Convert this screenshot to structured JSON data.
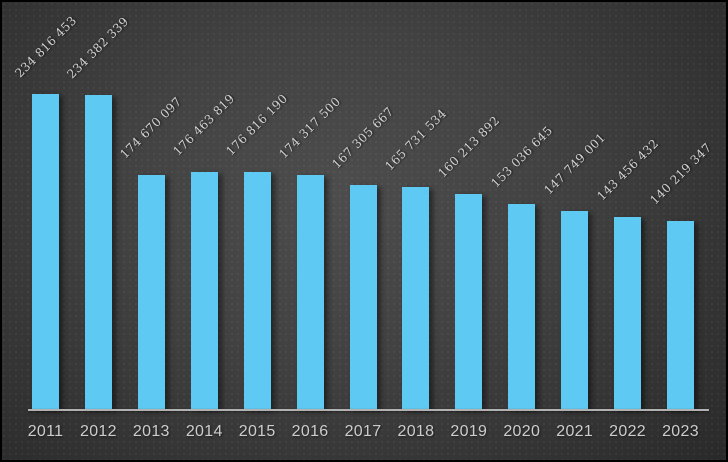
{
  "chart_data": {
    "type": "bar",
    "title": "",
    "xlabel": "",
    "ylabel": "",
    "categories": [
      "2011",
      "2012",
      "2013",
      "2014",
      "2015",
      "2016",
      "2017",
      "2018",
      "2019",
      "2020",
      "2021",
      "2022",
      "2023"
    ],
    "values": [
      234816453,
      234382339,
      174670097,
      176463819,
      176816190,
      174317500,
      167305667,
      165731534,
      160213892,
      153036645,
      147749001,
      143456432,
      140219347
    ],
    "data_labels": [
      "234 816 453",
      "234 382 339",
      "174 670 097",
      "176 463 819",
      "176 816 190",
      "174 317 500",
      "167 305 667",
      "165 731 534",
      "160 213 892",
      "153 036 645",
      "147 749 001",
      "143 456 432",
      "140 219 347"
    ],
    "data_label_rotation_deg": 45,
    "grid": false,
    "legend": false,
    "y_axis_visible": false,
    "ylim": [
      0,
      234816453
    ],
    "colors": {
      "bar": "#5EC9F2",
      "data_label": "#D3D3D3",
      "tick_label": "#CDCDCD",
      "axis_line": "#B2B2B2",
      "background_center": "#4D4D4D",
      "background_edge": "#272727",
      "frame_border": "#000000"
    }
  }
}
